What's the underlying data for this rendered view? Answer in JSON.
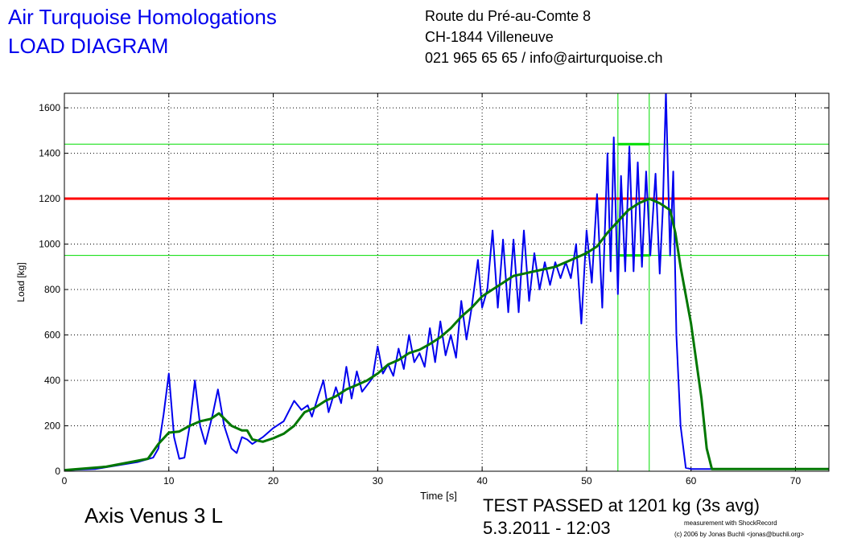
{
  "header": {
    "title": "Air Turquoise Homologations",
    "subtitle": "LOAD DIAGRAM",
    "address": [
      "Route du Pré-au-Comte 8",
      "CH-1844 Villeneuve",
      "021 965 65 65 / info@airturquoise.ch"
    ]
  },
  "chart_data": {
    "type": "line",
    "x_label": "Time [s]",
    "y_label": "Load [kg]",
    "xlim": [
      0,
      73.2
    ],
    "ylim": [
      0,
      1664
    ],
    "xticks": [
      0,
      10,
      20,
      30,
      40,
      50,
      60,
      70
    ],
    "yticks": [
      0,
      200,
      400,
      600,
      800,
      1000,
      1200,
      1400,
      1600
    ],
    "grid": true,
    "series": [
      {
        "color": "#0000ee",
        "x": [
          0,
          3,
          5,
          7,
          8.5,
          9,
          9.5,
          10,
          10.5,
          11,
          11.5,
          12,
          12.5,
          13,
          13.5,
          14.2,
          14.7,
          15.3,
          16,
          16.5,
          17,
          17.5,
          18,
          19,
          20,
          21,
          22,
          22.7,
          23.3,
          23.7,
          24.3,
          24.8,
          25.3,
          26,
          26.5,
          27,
          27.5,
          28,
          28.5,
          29,
          29.5,
          30,
          30.5,
          31,
          31.5,
          32,
          32.5,
          33,
          33.5,
          34,
          34.5,
          35,
          35.5,
          36,
          36.5,
          37,
          37.5,
          38,
          38.5,
          39,
          39.6,
          40,
          40.5,
          41,
          41.5,
          42,
          42.5,
          43,
          43.5,
          44,
          44.5,
          45,
          45.5,
          46,
          46.5,
          47,
          47.5,
          48,
          48.5,
          49,
          49.5,
          50,
          50.5,
          51,
          51.5,
          52,
          52.3,
          52.6,
          53,
          53.3,
          53.7,
          54.1,
          54.5,
          54.9,
          55.3,
          55.7,
          56.1,
          56.6,
          57,
          57.3,
          57.6,
          58,
          58.3,
          58.6,
          59,
          59.5,
          60,
          73.2
        ],
        "values": [
          5,
          10,
          25,
          40,
          60,
          100,
          250,
          430,
          150,
          55,
          60,
          200,
          400,
          200,
          120,
          250,
          360,
          200,
          100,
          80,
          150,
          140,
          120,
          150,
          190,
          220,
          310,
          270,
          290,
          240,
          330,
          400,
          260,
          370,
          300,
          460,
          320,
          440,
          350,
          380,
          410,
          550,
          430,
          470,
          420,
          540,
          450,
          600,
          480,
          520,
          460,
          630,
          480,
          660,
          510,
          600,
          500,
          750,
          580,
          720,
          930,
          720,
          800,
          1060,
          720,
          1020,
          700,
          1020,
          700,
          1060,
          750,
          960,
          800,
          920,
          820,
          920,
          850,
          920,
          850,
          1000,
          650,
          1060,
          830,
          1220,
          720,
          1400,
          880,
          1470,
          780,
          1300,
          880,
          1430,
          880,
          1360,
          900,
          1320,
          950,
          1310,
          870,
          1150,
          1670,
          950,
          1320,
          600,
          200,
          15,
          10,
          10
        ]
      },
      {
        "color": "#007700",
        "x": [
          0,
          4,
          8,
          9,
          10,
          11,
          12,
          13,
          14,
          14.8,
          16,
          17,
          17.5,
          18,
          19,
          20,
          21,
          22,
          23,
          24,
          25,
          26,
          27,
          28,
          29,
          30,
          31,
          32,
          33,
          34,
          35,
          36,
          37,
          38,
          39,
          40,
          41,
          42,
          43,
          44,
          45,
          46,
          47,
          48,
          49,
          50,
          51,
          52,
          53,
          54,
          55,
          56,
          57,
          58,
          58.5,
          59,
          60,
          61,
          61.5,
          62,
          73.2
        ],
        "values": [
          5,
          20,
          55,
          120,
          170,
          175,
          200,
          220,
          230,
          255,
          200,
          180,
          180,
          140,
          130,
          145,
          165,
          200,
          260,
          280,
          310,
          330,
          360,
          380,
          400,
          430,
          470,
          490,
          520,
          535,
          560,
          590,
          630,
          680,
          720,
          770,
          800,
          830,
          860,
          870,
          880,
          890,
          900,
          920,
          940,
          960,
          990,
          1050,
          1100,
          1150,
          1180,
          1200,
          1180,
          1150,
          1050,
          900,
          650,
          320,
          100,
          10,
          10
        ]
      }
    ],
    "limit_line": {
      "value": 1200,
      "color": "#ff0000"
    },
    "band_lines": {
      "values": [
        1440,
        950
      ],
      "color": "#00dd00"
    },
    "window": {
      "values": [
        53,
        56
      ],
      "color": "#00dd00"
    }
  },
  "footer": {
    "specimen": "Axis Venus 3 L",
    "result": "TEST PASSED at 1201 kg (3s avg)",
    "date": "5.3.2011 - 12:03",
    "credit": [
      "measurement with ShockRecord",
      "(c) 2006 by Jonas Buchli <jonas@buchli.org>"
    ]
  }
}
